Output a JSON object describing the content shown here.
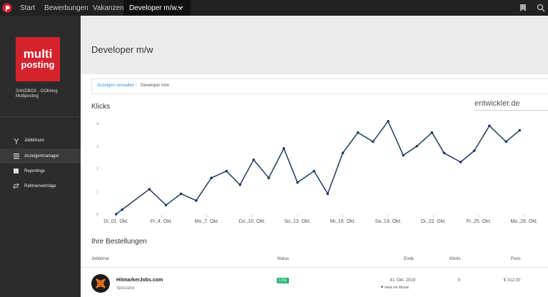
{
  "nav": {
    "items": [
      "Start",
      "Bewerbungen",
      "Vakanzen"
    ],
    "active": "Developer m/w..."
  },
  "sidebar": {
    "logo": [
      "multi",
      "posting"
    ],
    "account": [
      "SANDBOX - GOhiring",
      "Multiposting"
    ],
    "menu": [
      "Jobbörsen",
      "Anzeigenmanager",
      "Reportings",
      "Rahmenverträge"
    ]
  },
  "header": {
    "title": "Developer m/w"
  },
  "breadcrumb": [
    "Anzeigen verwalten",
    "Developer m/w"
  ],
  "section_title": "Klicks",
  "source": "entwickler.de",
  "chart_data": {
    "type": "line",
    "x": [
      1.0,
      1.4,
      3.2,
      4.3,
      5.3,
      6.3,
      7.3,
      8.3,
      9.2,
      10.1,
      11.1,
      12.1,
      13.0,
      14.1,
      15.0,
      16.0,
      17.0,
      18.0,
      19.0,
      20.0,
      20.9,
      21.9,
      22.7,
      23.8,
      24.7,
      25.7,
      26.8,
      27.7
    ],
    "series": [
      {
        "name": "Klicks",
        "color": "#1f3a5f",
        "values": [
          0,
          0.2,
          1.1,
          0.4,
          0.9,
          0.6,
          1.6,
          1.9,
          1.3,
          2.4,
          1.6,
          2.9,
          1.4,
          1.9,
          0.9,
          2.7,
          3.6,
          3.2,
          4.1,
          2.6,
          3.0,
          3.6,
          2.7,
          2.3,
          2.8,
          3.9,
          3.2,
          3.7
        ]
      }
    ],
    "xlim": [
      0.4,
      29.2
    ],
    "xticks": [
      {
        "value": 1,
        "label": "Di.,01. Okt."
      },
      {
        "value": 4,
        "label": "Fr.,4. Okt."
      },
      {
        "value": 7,
        "label": "Mo.,7. Okt."
      },
      {
        "value": 10,
        "label": "Do.,10. Okt."
      },
      {
        "value": 13,
        "label": "So.,13. Okt."
      },
      {
        "value": 16,
        "label": "Mi.,16. Okt."
      },
      {
        "value": 19,
        "label": "Sa.,19. Okt."
      },
      {
        "value": 22,
        "label": "Di.,22. Okt."
      },
      {
        "value": 25,
        "label": "Fr.,25. Okt."
      },
      {
        "value": 28,
        "label": "Mo.,28. Okt."
      }
    ],
    "ylim": [
      0,
      4
    ],
    "yticks": [
      0,
      1,
      2,
      3,
      4
    ],
    "grid": false
  },
  "orders": {
    "title": "Ihre Bestellungen",
    "columns": [
      "Jobbörse",
      "Status",
      "Ende",
      "Klicks",
      "Preis"
    ],
    "rows": [
      {
        "name": "HitmarkerJobs.com",
        "type": "Spezialist",
        "status": "LIVE",
        "end": "31. Okt. 2019",
        "duration": "etwa ein Monat",
        "clicks": "0",
        "price": "€ 312,00"
      }
    ]
  }
}
